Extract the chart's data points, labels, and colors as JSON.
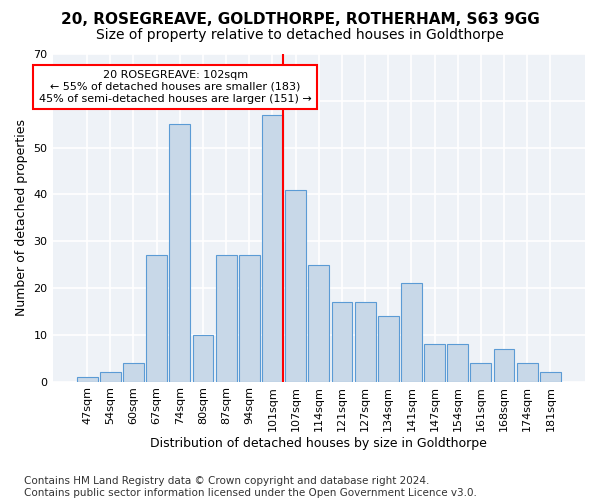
{
  "title": "20, ROSEGREAVE, GOLDTHORPE, ROTHERHAM, S63 9GG",
  "subtitle": "Size of property relative to detached houses in Goldthorpe",
  "xlabel": "Distribution of detached houses by size in Goldthorpe",
  "ylabel": "Number of detached properties",
  "categories": [
    "47sqm",
    "54sqm",
    "60sqm",
    "67sqm",
    "74sqm",
    "80sqm",
    "87sqm",
    "94sqm",
    "101sqm",
    "107sqm",
    "114sqm",
    "121sqm",
    "127sqm",
    "134sqm",
    "141sqm",
    "147sqm",
    "154sqm",
    "161sqm",
    "168sqm",
    "174sqm",
    "181sqm"
  ],
  "values": [
    1,
    2,
    4,
    27,
    55,
    10,
    27,
    27,
    57,
    41,
    25,
    17,
    17,
    14,
    21,
    8,
    8,
    4,
    7,
    4,
    2
  ],
  "bar_color": "#c8d8e8",
  "bar_edge_color": "#5b9bd5",
  "vline_index": 8,
  "annotation_text": "20 ROSEGREAVE: 102sqm\n← 55% of detached houses are smaller (183)\n45% of semi-detached houses are larger (151) →",
  "annotation_box_facecolor": "white",
  "annotation_box_edgecolor": "red",
  "vline_color": "red",
  "ylim": [
    0,
    70
  ],
  "yticks": [
    0,
    10,
    20,
    30,
    40,
    50,
    60,
    70
  ],
  "background_color": "#eef2f7",
  "grid_color": "white",
  "title_fontsize": 11,
  "subtitle_fontsize": 10,
  "xlabel_fontsize": 9,
  "ylabel_fontsize": 9,
  "tick_fontsize": 8,
  "footer_fontsize": 7.5,
  "footer": "Contains HM Land Registry data © Crown copyright and database right 2024.\nContains public sector information licensed under the Open Government Licence v3.0."
}
